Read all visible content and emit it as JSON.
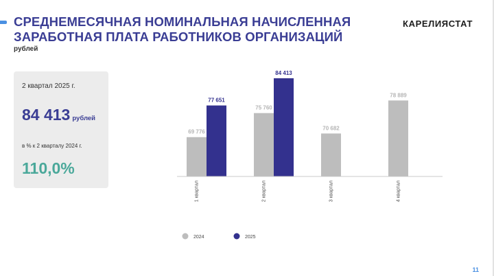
{
  "header": {
    "title_lines": [
      "СРЕДНЕМЕСЯЧНАЯ НОМИНАЛЬНАЯ НАЧИСЛЕННАЯ",
      "ЗАРАБОТНАЯ ПЛАТА РАБОТНИКОВ ОРГАНИЗАЦИЙ"
    ],
    "unit": "рублей",
    "brand": "КАРЕЛИЯСТАТ"
  },
  "card": {
    "period": "2 квартал 2025 г.",
    "value": "84 413",
    "currency": "рублей",
    "comparison_label": "в % к 2 кварталу 2024 г.",
    "percent": "110,0%"
  },
  "page_number": "11",
  "colors": {
    "title": "#3a3d94",
    "series_2024": "#bdbdbd",
    "series_2025": "#33318e",
    "percent": "#4aa89a",
    "label_2024": "#b5b5b5",
    "label_2025": "#33318e"
  },
  "chart_data": {
    "type": "bar",
    "categories": [
      "1 квартал",
      "2 квартал",
      "3 квартал",
      "4 квартал"
    ],
    "series": [
      {
        "name": "2024",
        "values": [
          69776,
          75760,
          70682,
          78889
        ],
        "labels": [
          "69 776",
          "75 760",
          "70 682",
          "78 889"
        ]
      },
      {
        "name": "2025",
        "values": [
          77651,
          84413,
          null,
          null
        ],
        "labels": [
          "77 651",
          "84 413",
          null,
          null
        ]
      }
    ],
    "legend_position": "bottom-left",
    "grid": false
  }
}
